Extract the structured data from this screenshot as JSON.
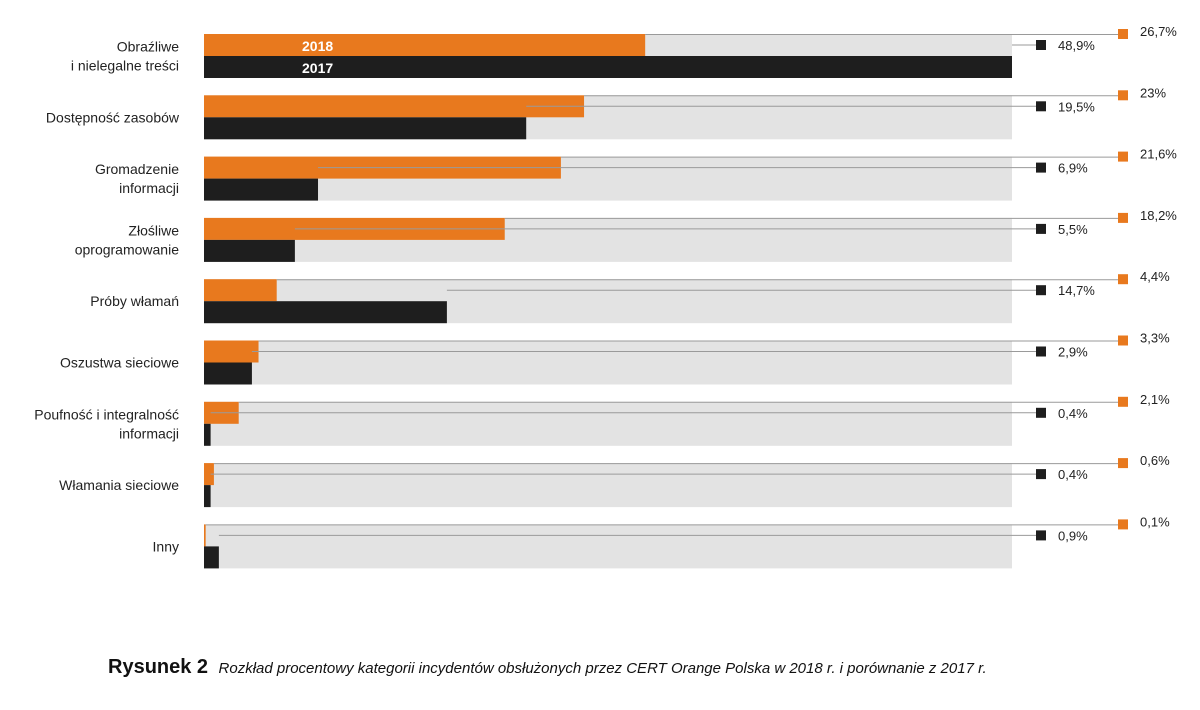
{
  "chart_data": {
    "type": "bar",
    "orientation": "horizontal",
    "categories": [
      [
        "Obraźliwe",
        "i nielegalne treści"
      ],
      [
        "Dostępność zasobów"
      ],
      [
        "Gromadzenie",
        "informacji"
      ],
      [
        "Złośliwe",
        "oprogramowanie"
      ],
      [
        "Próby włamań"
      ],
      [
        "Oszustwa sieciowe"
      ],
      [
        "Poufność i integralność",
        "informacji"
      ],
      [
        "Włamania sieciowe"
      ],
      [
        "Inny"
      ]
    ],
    "series": [
      {
        "name": "2018",
        "color": "#E8791E",
        "values": [
          26.7,
          23,
          21.6,
          18.2,
          4.4,
          3.3,
          2.1,
          0.6,
          0.1
        ],
        "labels": [
          "26,7%",
          "23%",
          "21,6%",
          "18,2%",
          "4,4%",
          "3,3%",
          "2,1%",
          "0,6%",
          "0,1%"
        ]
      },
      {
        "name": "2017",
        "color": "#1E1E1E",
        "values": [
          48.9,
          19.5,
          6.9,
          5.5,
          14.7,
          2.9,
          0.4,
          0.4,
          0.9
        ],
        "labels": [
          "48,9%",
          "19,5%",
          "6,9%",
          "5,5%",
          "14,7%",
          "2,9%",
          "0,4%",
          "0,4%",
          "0,9%"
        ]
      }
    ],
    "xlim": [
      0,
      48.9
    ],
    "background_track_color": "#E3E3E3",
    "legend": "inside-first-bars"
  },
  "caption": {
    "prefix": "Rysunek 2",
    "text": "Rozkład procentowy kategorii incydentów obsłużonych przez CERT Orange Polska w 2018 r. i porównanie z 2017 r."
  }
}
